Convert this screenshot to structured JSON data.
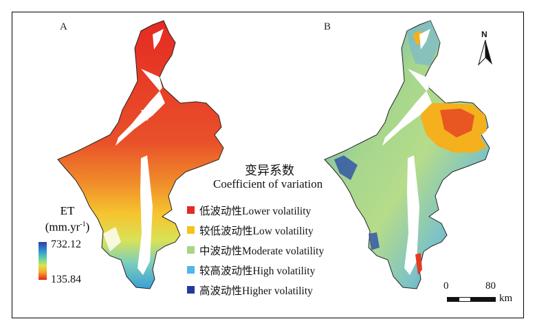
{
  "panels": {
    "a_label": "A",
    "b_label": "B"
  },
  "legend": {
    "title_cn": "变异系数",
    "title_en": "Coefficient of variation",
    "items": [
      {
        "label": "低波动性Lower volatility",
        "color": "#e32a26"
      },
      {
        "label": "较低波动性Low volatility",
        "color": "#f6c21a"
      },
      {
        "label": "中波动性Moderate volatility",
        "color": "#a8d58a"
      },
      {
        "label": "较高波动性High volatility",
        "color": "#52b6e6"
      },
      {
        "label": "高波动性Higher volatility",
        "color": "#223a9a"
      }
    ]
  },
  "et_legend": {
    "title": "ET",
    "unit_base": "(mm.yr",
    "unit_sup": "-1",
    "unit_close": ")",
    "max": "732.12",
    "min": "135.84"
  },
  "north_arrow": {
    "label": "N"
  },
  "scale_bar": {
    "start": "0",
    "end": "80",
    "unit": "km"
  }
}
